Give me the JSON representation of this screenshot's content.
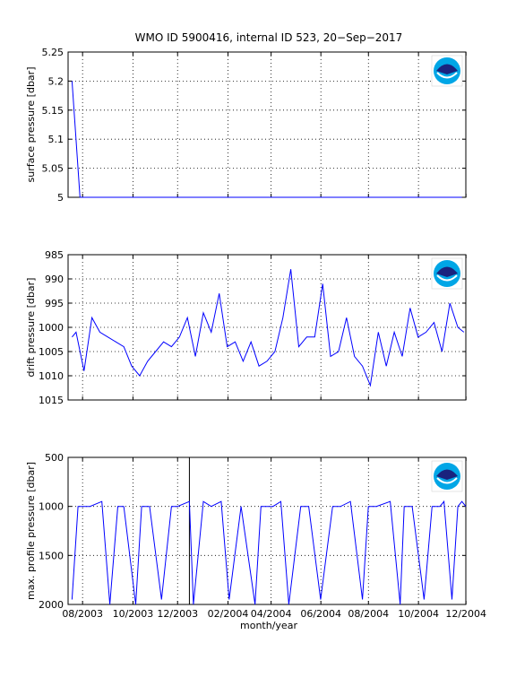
{
  "figure": {
    "title": "WMO ID 5900416, internal ID 523, 20−Sep−2017",
    "xlabel": "month/year",
    "line_color": "#0000ff"
  },
  "chart_data": [
    {
      "type": "line",
      "ylabel": "surface pressure [dbar]",
      "ylim": [
        5,
        5.25
      ],
      "yticks": [
        "5",
        "5.05",
        "5.1",
        "5.15",
        "5.2",
        "5.25"
      ],
      "ytick_values": [
        5,
        5.05,
        5.1,
        5.15,
        5.2,
        5.25
      ],
      "y_reversed": false,
      "xlim": [
        0,
        1
      ],
      "grid": true,
      "logo": "noaa-logo",
      "x": [
        0.01,
        0.03,
        0.99
      ],
      "y": [
        5.2,
        5.0,
        5.0
      ]
    },
    {
      "type": "line",
      "ylabel": "drift pressure [dbar]",
      "ylim": [
        985,
        1015
      ],
      "yticks": [
        "985",
        "990",
        "995",
        "1000",
        "1005",
        "1010",
        "1015"
      ],
      "ytick_values": [
        985,
        990,
        995,
        1000,
        1005,
        1010,
        1015
      ],
      "y_reversed": true,
      "xlim": [
        0,
        1
      ],
      "grid": true,
      "logo": "noaa-logo",
      "x": [
        0.01,
        0.02,
        0.04,
        0.06,
        0.08,
        0.1,
        0.12,
        0.14,
        0.16,
        0.18,
        0.2,
        0.22,
        0.24,
        0.26,
        0.28,
        0.3,
        0.32,
        0.34,
        0.36,
        0.38,
        0.4,
        0.42,
        0.44,
        0.46,
        0.48,
        0.5,
        0.52,
        0.54,
        0.56,
        0.58,
        0.6,
        0.62,
        0.64,
        0.66,
        0.68,
        0.7,
        0.72,
        0.74,
        0.76,
        0.78,
        0.8,
        0.82,
        0.84,
        0.86,
        0.88,
        0.9,
        0.92,
        0.94,
        0.96,
        0.98,
        0.995
      ],
      "y": [
        1002,
        1001,
        1009,
        998,
        1001,
        1002,
        1003,
        1004,
        1008,
        1010,
        1007,
        1005,
        1003,
        1004,
        1002,
        998,
        1006,
        997,
        1001,
        993,
        1004,
        1003,
        1007,
        1003,
        1008,
        1007,
        1005,
        998,
        988,
        1004,
        1002,
        1002,
        991,
        1006,
        1005,
        998,
        1006,
        1008,
        1012,
        1001,
        1008,
        1001,
        1006,
        996,
        1002,
        1001,
        999,
        1005,
        995,
        1000,
        1001
      ]
    },
    {
      "type": "line",
      "ylabel": "max. profile pressure [dbar]",
      "ylim": [
        500,
        2000
      ],
      "yticks": [
        "500",
        "1000",
        "1500",
        "2000"
      ],
      "ytick_values": [
        500,
        1000,
        1500,
        2000
      ],
      "y_reversed": true,
      "xlim": [
        0,
        1
      ],
      "grid": true,
      "logo": "noaa-logo",
      "vline_x": 0.305,
      "x": [
        0.01,
        0.025,
        0.055,
        0.085,
        0.105,
        0.125,
        0.14,
        0.17,
        0.185,
        0.205,
        0.235,
        0.26,
        0.275,
        0.305,
        0.315,
        0.34,
        0.36,
        0.385,
        0.405,
        0.435,
        0.47,
        0.485,
        0.515,
        0.535,
        0.555,
        0.585,
        0.605,
        0.635,
        0.665,
        0.685,
        0.71,
        0.74,
        0.755,
        0.775,
        0.81,
        0.835,
        0.845,
        0.865,
        0.895,
        0.915,
        0.935,
        0.945,
        0.965,
        0.98,
        0.99,
        1.0
      ],
      "y": [
        1950,
        1000,
        1000,
        950,
        2000,
        1000,
        1000,
        2000,
        1000,
        1000,
        1950,
        1000,
        1000,
        950,
        2000,
        950,
        1000,
        950,
        1950,
        1000,
        2000,
        1000,
        1000,
        950,
        2000,
        1000,
        1000,
        1950,
        1000,
        1000,
        950,
        1950,
        1000,
        1000,
        950,
        2000,
        1000,
        1000,
        1950,
        1000,
        1000,
        950,
        1950,
        1000,
        950,
        1000
      ]
    }
  ],
  "xticks": [
    "08/2003",
    "10/2003",
    "12/2003",
    "02/2004",
    "04/2004",
    "06/2004",
    "08/2004",
    "10/2004",
    "12/2004"
  ],
  "xtick_positions": [
    0.0453,
    0.2029,
    0.3424,
    0.5,
    0.6349,
    0.7905,
    0.9392,
    1.0957,
    1.2443
  ],
  "xtick_scale": 0.804
}
